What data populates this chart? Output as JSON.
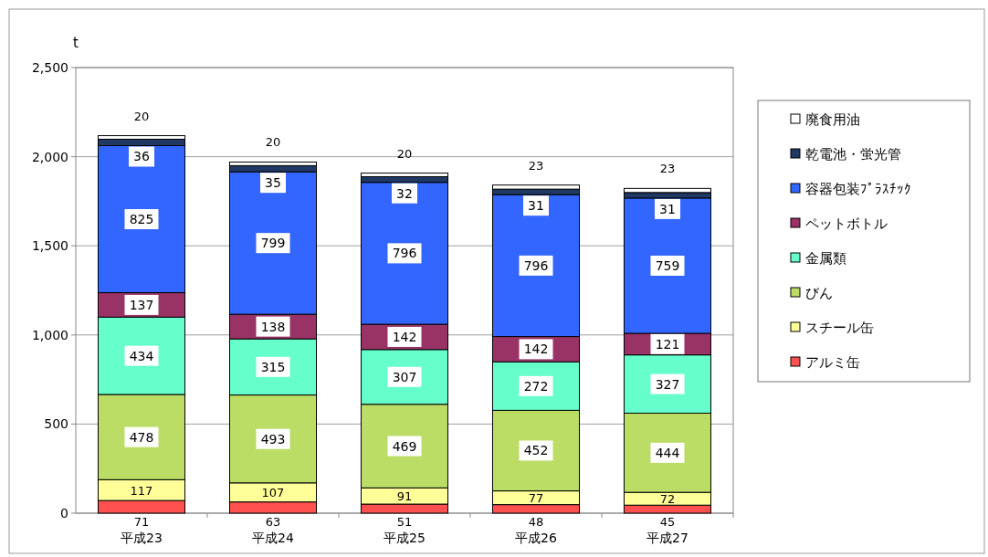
{
  "chart_data": {
    "type": "bar",
    "stacked": true,
    "ylabel": "t",
    "categories": [
      "平成23",
      "平成24",
      "平成25",
      "平成26",
      "平成27"
    ],
    "series": [
      {
        "name": "アルミ缶",
        "color": "#ff5050",
        "values": [
          71,
          63,
          51,
          48,
          45
        ]
      },
      {
        "name": "スチール缶",
        "color": "#ffff99",
        "values": [
          117,
          107,
          91,
          77,
          72
        ]
      },
      {
        "name": "びん",
        "color": "#bbdd66",
        "values": [
          478,
          493,
          469,
          452,
          444
        ]
      },
      {
        "name": "金属類",
        "color": "#66ffcc",
        "values": [
          434,
          315,
          307,
          272,
          327
        ]
      },
      {
        "name": "ペットボトル",
        "color": "#993366",
        "values": [
          137,
          138,
          142,
          142,
          121
        ]
      },
      {
        "name": "容器包装ﾌﾟﾗｽﾁｯｸ",
        "color": "#3366ff",
        "values": [
          825,
          799,
          796,
          796,
          759
        ]
      },
      {
        "name": "乾電池・蛍光管",
        "color": "#1f3864",
        "values": [
          36,
          35,
          32,
          31,
          31
        ]
      },
      {
        "name": "廃食用油",
        "color": "#ffffff",
        "values": [
          20,
          20,
          20,
          23,
          23
        ]
      }
    ],
    "ylim": [
      0,
      2500
    ],
    "yticks": [
      0,
      {
        "value": 500,
        "label": "500"
      },
      {
        "value": 1000,
        "label": "1,000"
      },
      {
        "value": 1500,
        "label": "1,500"
      },
      {
        "value": 2000,
        "label": "2,000"
      },
      {
        "value": 2500,
        "label": "2,500"
      }
    ],
    "grid": "y",
    "legend": "right",
    "data_labels": true
  }
}
